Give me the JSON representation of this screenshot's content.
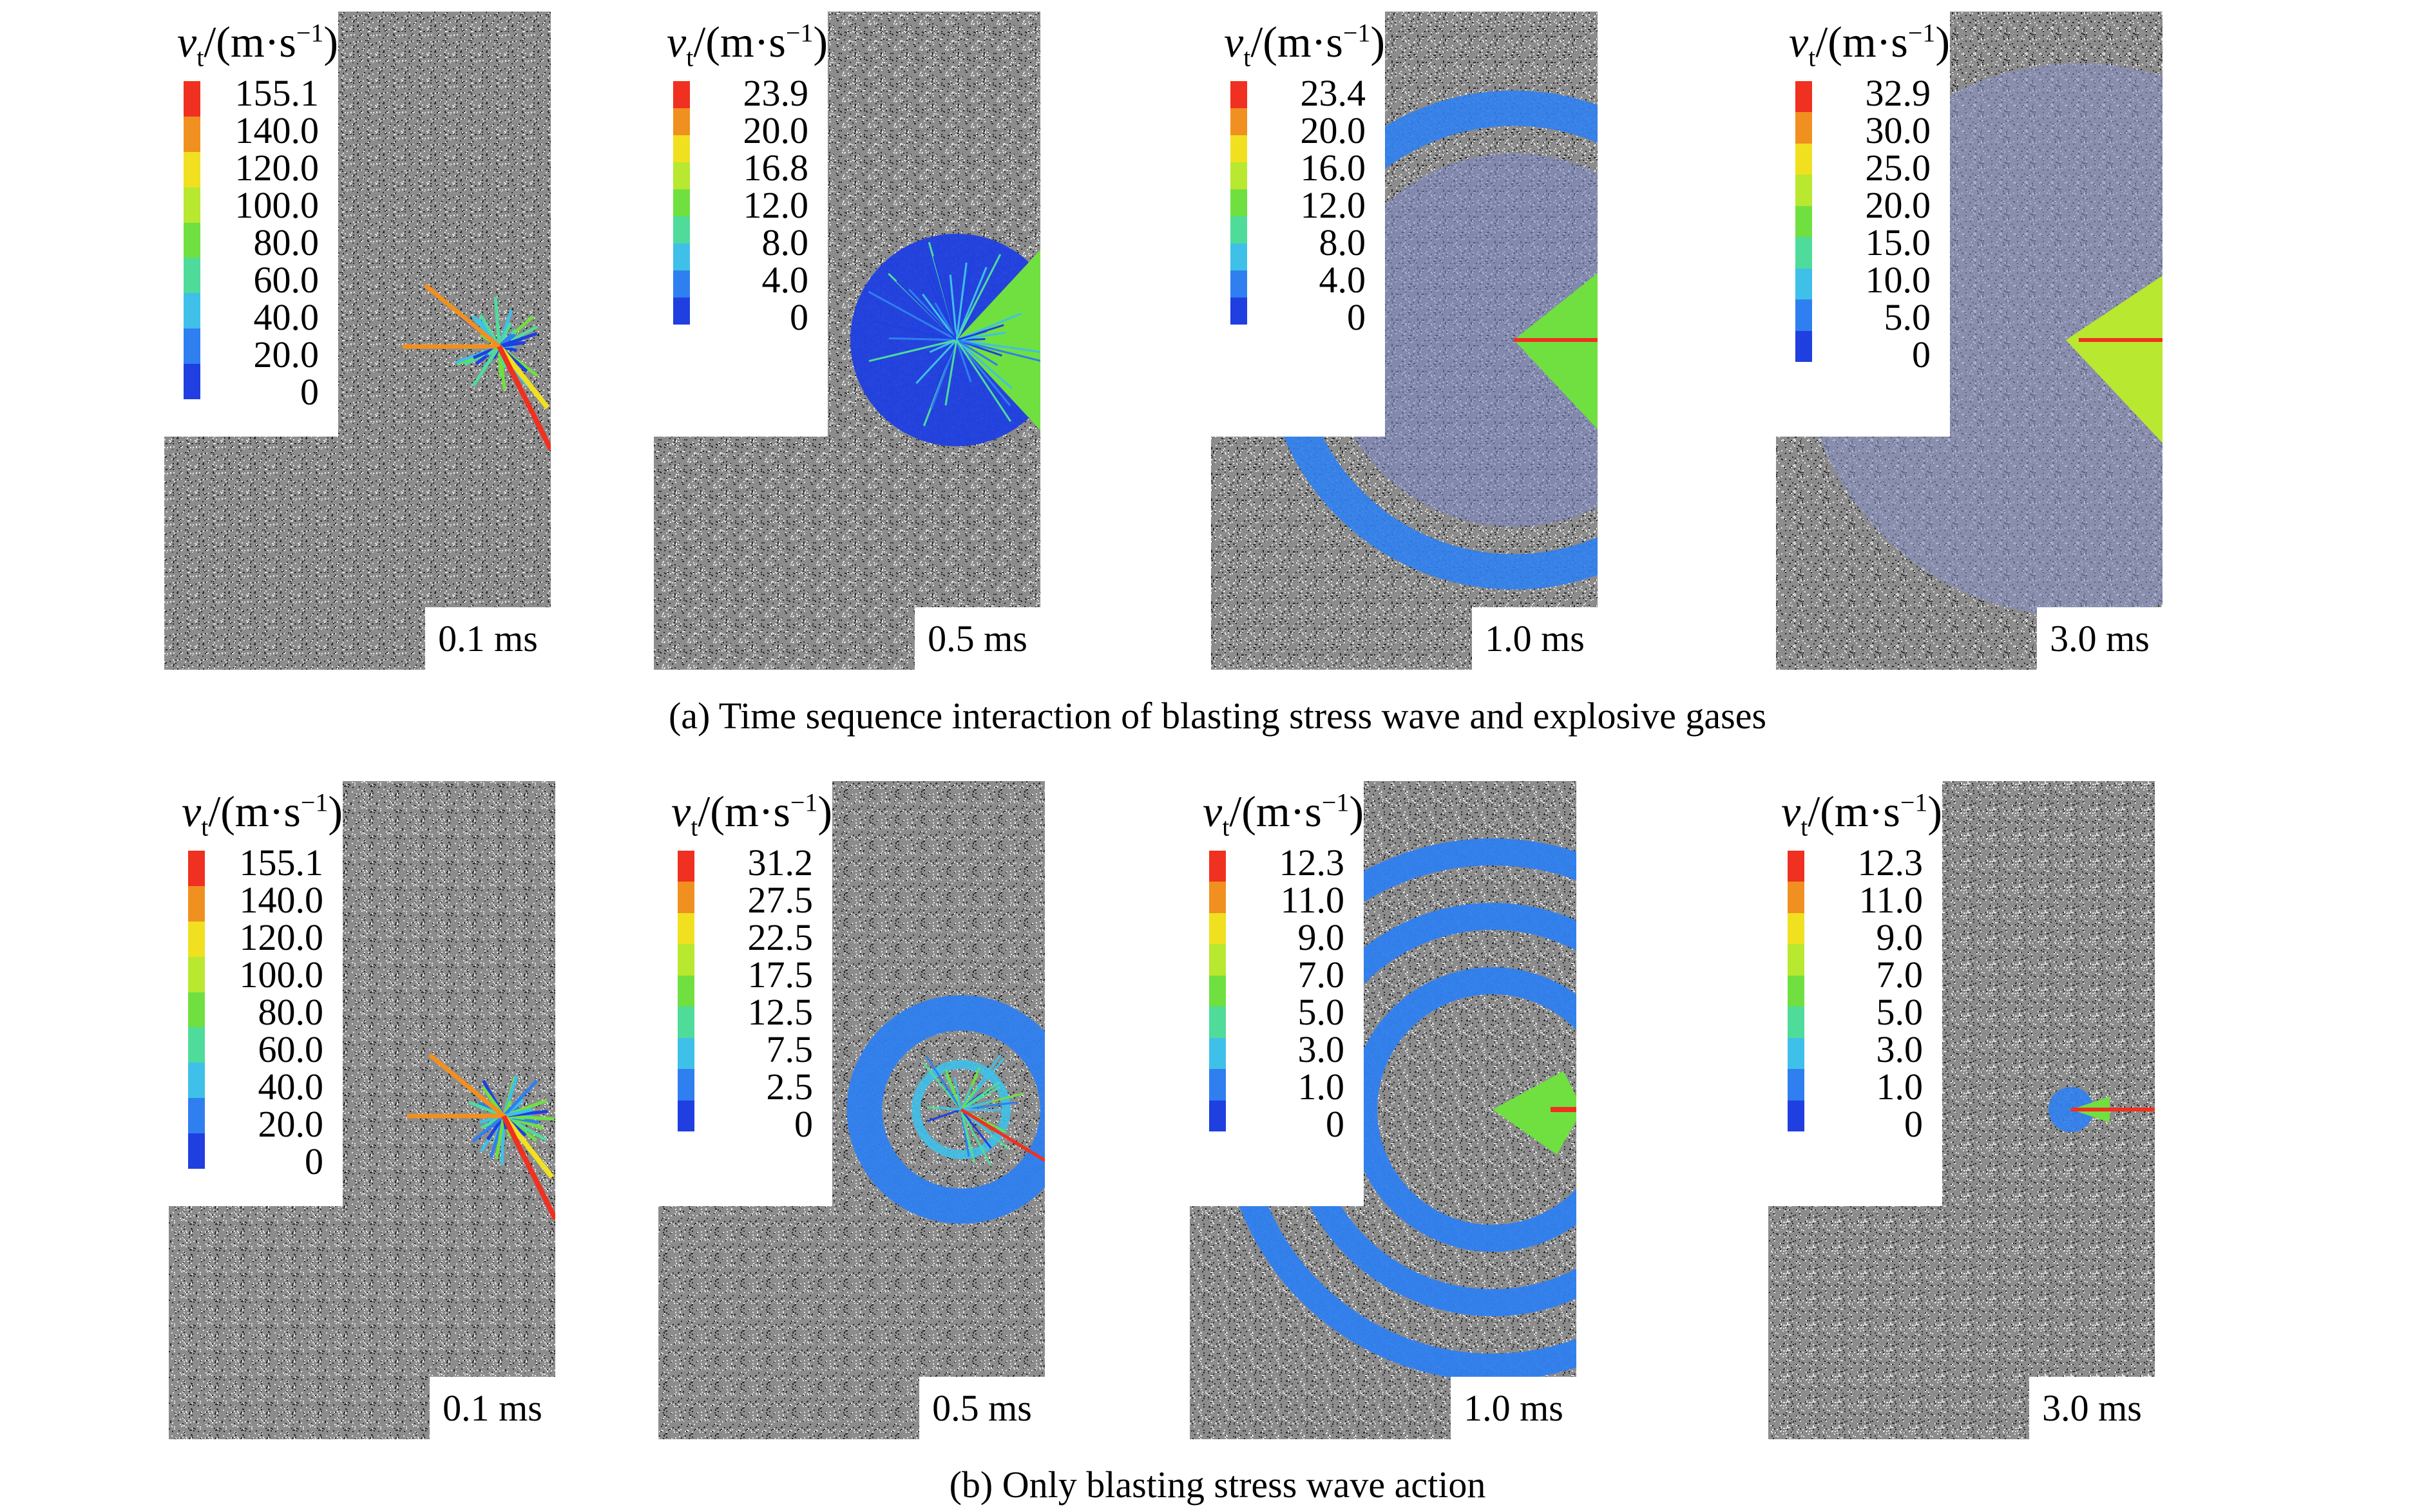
{
  "legend_title": {
    "symbol": "v",
    "subscript": "t",
    "unit_prefix": "/(m·s",
    "unit_exp": "−1",
    "unit_suffix": ")"
  },
  "colors": {
    "matrix": "#8a8a8a",
    "cut": "#ffffff",
    "scale": [
      "#1f3fe0",
      "#2f7ff0",
      "#3fc0e8",
      "#4fdc9a",
      "#70e040",
      "#b8e830",
      "#f0e020",
      "#f09020",
      "#f03020"
    ]
  },
  "rows": [
    {
      "caption": "(a) Time sequence interaction of blasting stress wave and explosive gases",
      "panels": [
        {
          "time": "0.1 ms",
          "ticks": [
            "155.1",
            "140.0",
            "120.0",
            "100.0",
            "80.0",
            "60.0",
            "40.0",
            "20.0",
            "0"
          ]
        },
        {
          "time": "0.5 ms",
          "ticks": [
            "23.9",
            "20.0",
            "16.8",
            "12.0",
            "8.0",
            "4.0",
            "0"
          ]
        },
        {
          "time": "1.0 ms",
          "ticks": [
            "23.4",
            "20.0",
            "16.0",
            "12.0",
            "8.0",
            "4.0",
            "0"
          ]
        },
        {
          "time": "3.0 ms",
          "ticks": [
            "32.9",
            "30.0",
            "25.0",
            "20.0",
            "15.0",
            "10.0",
            "5.0",
            "0"
          ]
        }
      ]
    },
    {
      "caption": "(b) Only blasting stress wave action",
      "panels": [
        {
          "time": "0.1 ms",
          "ticks": [
            "155.1",
            "140.0",
            "120.0",
            "100.0",
            "80.0",
            "60.0",
            "40.0",
            "20.0",
            "0"
          ]
        },
        {
          "time": "0.5 ms",
          "ticks": [
            "31.2",
            "27.5",
            "22.5",
            "17.5",
            "12.5",
            "7.5",
            "2.5",
            "0"
          ]
        },
        {
          "time": "1.0 ms",
          "ticks": [
            "12.3",
            "11.0",
            "9.0",
            "7.0",
            "5.0",
            "3.0",
            "1.0",
            "0"
          ]
        },
        {
          "time": "3.0 ms",
          "ticks": [
            "12.3",
            "11.0",
            "9.0",
            "7.0",
            "5.0",
            "3.0",
            "1.0",
            "0"
          ]
        }
      ]
    }
  ]
}
